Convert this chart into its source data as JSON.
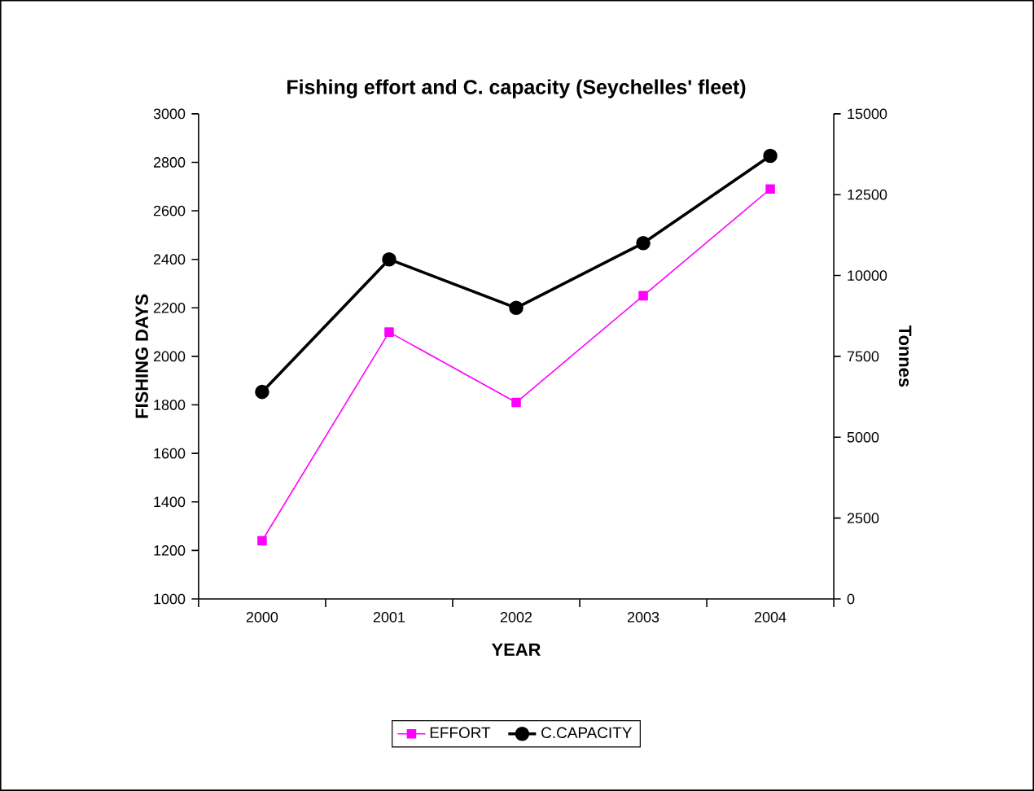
{
  "chart_data": {
    "type": "line",
    "title": "Fishing effort and C. capacity (Seychelles' fleet)",
    "xlabel": "YEAR",
    "ylabel": "FISHING DAYS",
    "y2label": "Tonnes",
    "categories": [
      "2000",
      "2001",
      "2002",
      "2003",
      "2004"
    ],
    "series": [
      {
        "name": "EFFORT",
        "color": "#ff00ff",
        "marker": "square",
        "values": [
          1240,
          2100,
          1810,
          2250,
          2690
        ]
      },
      {
        "name": "C.CAPACITY",
        "color": "#000000",
        "marker": "circle",
        "axis": "y2",
        "values": [
          6400,
          10500,
          9000,
          11000,
          13700
        ]
      }
    ],
    "ylim": [
      1000,
      3000
    ],
    "yticks": [
      1000,
      1200,
      1400,
      1600,
      1800,
      2000,
      2200,
      2400,
      2600,
      2800,
      3000
    ],
    "y2lim": [
      0,
      15000
    ],
    "y2ticks": [
      0,
      2500,
      5000,
      7500,
      10000,
      12500,
      15000
    ],
    "grid": false,
    "legend": "bottom",
    "line_style": "solid"
  }
}
